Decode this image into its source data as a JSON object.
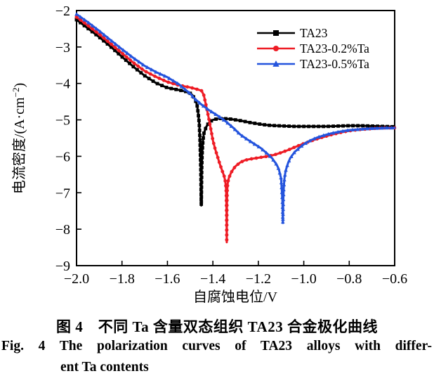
{
  "figure": {
    "caption_zh": "图 4　不同 Ta 含量双态组织 TA23 合金极化曲线",
    "caption_en_line1": "Fig. 4 The polarization curves of TA23 alloys with differ-",
    "caption_en_line2": "ent Ta contents"
  },
  "chart_data": {
    "type": "line",
    "title": "",
    "xlabel": "自腐蚀电位/V",
    "ylabel": "电流密度/(A·cm−2)",
    "ylabel_main": "电流密度/(A·cm",
    "ylabel_sup": "−2",
    "ylabel_close": ")",
    "xlim": [
      -2.0,
      -0.6
    ],
    "ylim": [
      -9,
      -2
    ],
    "grid": false,
    "legend_position": "upper right",
    "xticks": [
      -2.0,
      -1.8,
      -1.6,
      -1.4,
      -1.2,
      -1.0,
      -0.8,
      -0.6
    ],
    "xtick_labels": [
      "−2.0",
      "−1.8",
      "−1.6",
      "−1.4",
      "−1.2",
      "−1.0",
      "−0.8",
      "−0.6"
    ],
    "yticks": [
      -2,
      -3,
      -4,
      -5,
      -6,
      -7,
      -8,
      -9
    ],
    "ytick_labels": [
      "−2",
      "−3",
      "−4",
      "−5",
      "−6",
      "−7",
      "−8",
      "−9"
    ],
    "series": [
      {
        "name": "TA23",
        "color": "#000000",
        "marker": "square",
        "corrosion_potential_V": -1.45,
        "min_log_current": -7.35,
        "points": [
          [
            -2.0,
            -2.25
          ],
          [
            -1.95,
            -2.49
          ],
          [
            -1.9,
            -2.73
          ],
          [
            -1.85,
            -2.99
          ],
          [
            -1.8,
            -3.27
          ],
          [
            -1.75,
            -3.54
          ],
          [
            -1.7,
            -3.79
          ],
          [
            -1.65,
            -3.99
          ],
          [
            -1.6,
            -4.12
          ],
          [
            -1.55,
            -4.18
          ],
          [
            -1.52,
            -4.22
          ],
          [
            -1.5,
            -4.27
          ],
          [
            -1.49,
            -4.32
          ],
          [
            -1.48,
            -4.42
          ],
          [
            -1.47,
            -4.58
          ],
          [
            -1.465,
            -4.8
          ],
          [
            -1.46,
            -5.1
          ],
          [
            -1.457,
            -5.5
          ],
          [
            -1.455,
            -5.95
          ],
          [
            -1.453,
            -6.4
          ],
          [
            -1.452,
            -6.9
          ],
          [
            -1.451,
            -7.35
          ],
          [
            -1.45,
            -6.8
          ],
          [
            -1.449,
            -6.3
          ],
          [
            -1.447,
            -5.9
          ],
          [
            -1.444,
            -5.6
          ],
          [
            -1.44,
            -5.38
          ],
          [
            -1.43,
            -5.2
          ],
          [
            -1.42,
            -5.1
          ],
          [
            -1.41,
            -5.04
          ],
          [
            -1.4,
            -5.0
          ],
          [
            -1.38,
            -4.97
          ],
          [
            -1.36,
            -4.96
          ],
          [
            -1.34,
            -4.97
          ],
          [
            -1.32,
            -4.98
          ],
          [
            -1.3,
            -5.0
          ],
          [
            -1.27,
            -5.03
          ],
          [
            -1.24,
            -5.07
          ],
          [
            -1.21,
            -5.1
          ],
          [
            -1.18,
            -5.13
          ],
          [
            -1.15,
            -5.15
          ],
          [
            -1.12,
            -5.16
          ],
          [
            -1.08,
            -5.17
          ],
          [
            -1.04,
            -5.18
          ],
          [
            -1.0,
            -5.18
          ],
          [
            -0.95,
            -5.18
          ],
          [
            -0.9,
            -5.18
          ],
          [
            -0.85,
            -5.17
          ],
          [
            -0.8,
            -5.16
          ],
          [
            -0.75,
            -5.16
          ],
          [
            -0.7,
            -5.17
          ],
          [
            -0.65,
            -5.18
          ],
          [
            -0.6,
            -5.19
          ]
        ]
      },
      {
        "name": "TA23-0.2%Ta",
        "color": "#ee1c25",
        "marker": "circle",
        "corrosion_potential_V": -1.34,
        "min_log_current": -8.36,
        "points": [
          [
            -2.0,
            -2.18
          ],
          [
            -1.95,
            -2.41
          ],
          [
            -1.9,
            -2.65
          ],
          [
            -1.85,
            -2.91
          ],
          [
            -1.8,
            -3.17
          ],
          [
            -1.75,
            -3.43
          ],
          [
            -1.7,
            -3.66
          ],
          [
            -1.65,
            -3.82
          ],
          [
            -1.6,
            -3.96
          ],
          [
            -1.55,
            -4.05
          ],
          [
            -1.5,
            -4.11
          ],
          [
            -1.47,
            -4.16
          ],
          [
            -1.45,
            -4.2
          ],
          [
            -1.44,
            -4.32
          ],
          [
            -1.43,
            -4.6
          ],
          [
            -1.42,
            -4.9
          ],
          [
            -1.41,
            -5.22
          ],
          [
            -1.4,
            -5.56
          ],
          [
            -1.39,
            -5.8
          ],
          [
            -1.38,
            -6.0
          ],
          [
            -1.37,
            -6.2
          ],
          [
            -1.36,
            -6.38
          ],
          [
            -1.35,
            -6.55
          ],
          [
            -1.345,
            -6.7
          ],
          [
            -1.342,
            -6.9
          ],
          [
            -1.341,
            -7.1
          ],
          [
            -1.34,
            -7.6
          ],
          [
            -1.339,
            -8.36
          ],
          [
            -1.338,
            -7.3
          ],
          [
            -1.337,
            -6.95
          ],
          [
            -1.335,
            -6.75
          ],
          [
            -1.33,
            -6.6
          ],
          [
            -1.32,
            -6.45
          ],
          [
            -1.31,
            -6.35
          ],
          [
            -1.3,
            -6.27
          ],
          [
            -1.28,
            -6.17
          ],
          [
            -1.26,
            -6.11
          ],
          [
            -1.24,
            -6.08
          ],
          [
            -1.22,
            -6.06
          ],
          [
            -1.19,
            -6.03
          ],
          [
            -1.16,
            -6.0
          ],
          [
            -1.13,
            -5.96
          ],
          [
            -1.1,
            -5.9
          ],
          [
            -1.07,
            -5.83
          ],
          [
            -1.04,
            -5.75
          ],
          [
            -1.0,
            -5.65
          ],
          [
            -0.96,
            -5.56
          ],
          [
            -0.92,
            -5.48
          ],
          [
            -0.88,
            -5.41
          ],
          [
            -0.84,
            -5.35
          ],
          [
            -0.8,
            -5.3
          ],
          [
            -0.76,
            -5.27
          ],
          [
            -0.72,
            -5.25
          ],
          [
            -0.68,
            -5.23
          ],
          [
            -0.64,
            -5.22
          ],
          [
            -0.6,
            -5.22
          ]
        ]
      },
      {
        "name": "TA23-0.5%Ta",
        "color": "#2454dd",
        "marker": "triangle",
        "corrosion_potential_V": -1.09,
        "min_log_current": -7.83,
        "points": [
          [
            -2.0,
            -2.1
          ],
          [
            -1.95,
            -2.32
          ],
          [
            -1.9,
            -2.56
          ],
          [
            -1.85,
            -2.81
          ],
          [
            -1.8,
            -3.06
          ],
          [
            -1.75,
            -3.3
          ],
          [
            -1.7,
            -3.52
          ],
          [
            -1.65,
            -3.69
          ],
          [
            -1.6,
            -3.83
          ],
          [
            -1.55,
            -4.02
          ],
          [
            -1.5,
            -4.28
          ],
          [
            -1.48,
            -4.42
          ],
          [
            -1.45,
            -4.58
          ],
          [
            -1.42,
            -4.72
          ],
          [
            -1.4,
            -4.8
          ],
          [
            -1.37,
            -4.92
          ],
          [
            -1.34,
            -5.06
          ],
          [
            -1.31,
            -5.22
          ],
          [
            -1.28,
            -5.4
          ],
          [
            -1.25,
            -5.53
          ],
          [
            -1.22,
            -5.65
          ],
          [
            -1.19,
            -5.77
          ],
          [
            -1.16,
            -5.93
          ],
          [
            -1.14,
            -6.05
          ],
          [
            -1.12,
            -6.22
          ],
          [
            -1.11,
            -6.35
          ],
          [
            -1.1,
            -6.6
          ],
          [
            -1.097,
            -6.9
          ],
          [
            -1.094,
            -7.25
          ],
          [
            -1.092,
            -7.83
          ],
          [
            -1.09,
            -7.2
          ],
          [
            -1.088,
            -6.85
          ],
          [
            -1.085,
            -6.6
          ],
          [
            -1.08,
            -6.4
          ],
          [
            -1.07,
            -6.2
          ],
          [
            -1.06,
            -6.05
          ],
          [
            -1.04,
            -5.88
          ],
          [
            -1.02,
            -5.77
          ],
          [
            -1.0,
            -5.67
          ],
          [
            -0.97,
            -5.56
          ],
          [
            -0.94,
            -5.48
          ],
          [
            -0.91,
            -5.42
          ],
          [
            -0.88,
            -5.37
          ],
          [
            -0.84,
            -5.32
          ],
          [
            -0.8,
            -5.28
          ],
          [
            -0.76,
            -5.26
          ],
          [
            -0.72,
            -5.24
          ],
          [
            -0.68,
            -5.23
          ],
          [
            -0.64,
            -5.22
          ],
          [
            -0.6,
            -5.22
          ]
        ]
      }
    ]
  }
}
